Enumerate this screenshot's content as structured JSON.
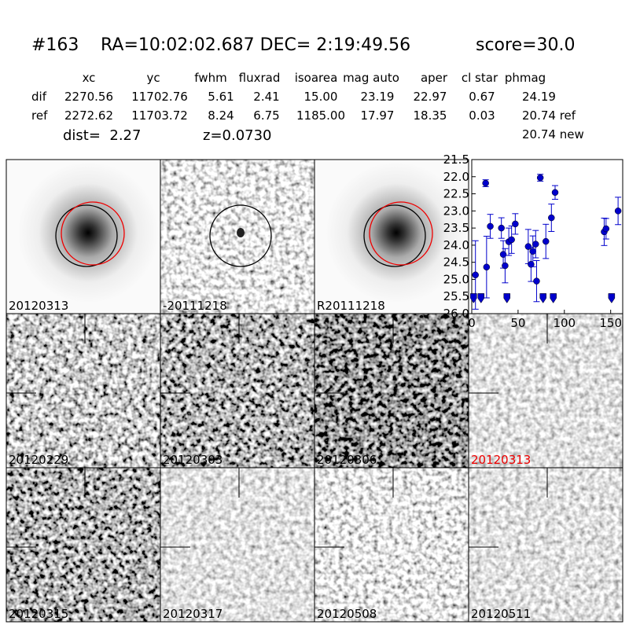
{
  "header": {
    "id": "#163",
    "coords": "RA=10:02:02.687 DEC= 2:19:49.56",
    "score": "score=30.0"
  },
  "table": {
    "columns": [
      "xc",
      "yc",
      "fwhm",
      "fluxrad",
      "isoarea",
      "mag auto",
      "aper",
      "cl star",
      "phmag"
    ],
    "rows": [
      [
        "dif",
        "2270.56",
        "11702.76",
        "5.61",
        "2.41",
        "15.00",
        "23.19",
        "22.97",
        "0.67",
        "24.19"
      ],
      [
        "ref",
        "2272.62",
        "11703.72",
        "8.24",
        "6.75",
        "1185.00",
        "17.97",
        "18.35",
        "0.03",
        "20.74 ref"
      ]
    ],
    "extra": "20.74 new"
  },
  "dist": "dist=  2.27",
  "z": "z=0.0730",
  "panels": [
    "20120313",
    "-20111218",
    "R20111218",
    "20120229",
    "20120303",
    "20120306",
    "20120313",
    "20120315",
    "20120317",
    "20120508",
    "20120511"
  ],
  "chart_data": {
    "type": "scatter",
    "xlim": [
      0,
      163
    ],
    "xticks": [
      0,
      50,
      100,
      150
    ],
    "ylim": [
      21.5,
      26.0
    ],
    "yticks": [
      21.5,
      {
        "value": 22.0,
        "label": "22.0"
      },
      22.5,
      {
        "value": 23.0,
        "label": "23.0"
      },
      23.5,
      {
        "value": 24.0,
        "label": "24.0"
      },
      24.5,
      {
        "value": 25.0,
        "label": "25.0"
      },
      25.5,
      {
        "value": 26.0,
        "label": "26.0"
      }
    ],
    "y_inverted": true,
    "points": {
      "color": "#0000cc",
      "x": [
        4,
        15,
        16,
        20,
        32,
        34,
        36,
        40,
        43,
        47,
        61,
        64,
        66,
        69,
        70,
        74,
        80,
        86,
        90,
        143,
        145,
        158
      ],
      "values": [
        24.87,
        22.19,
        24.64,
        23.45,
        23.5,
        24.27,
        24.6,
        23.9,
        23.84,
        23.38,
        24.04,
        24.56,
        24.18,
        23.97,
        25.05,
        22.03,
        23.89,
        23.2,
        22.46,
        23.61,
        23.52,
        23.0
      ],
      "errors": [
        1.0,
        0.1,
        0.9,
        0.35,
        0.3,
        0.4,
        0.5,
        0.4,
        0.4,
        0.3,
        0.5,
        0.5,
        0.45,
        0.4,
        0.6,
        0.1,
        0.5,
        0.4,
        0.2,
        0.4,
        0.3,
        0.4
      ]
    },
    "upper_limits": {
      "color": "#0000cc",
      "x": [
        2,
        10,
        38,
        77,
        88,
        151
      ],
      "values": [
        25.55,
        25.55,
        25.55,
        25.55,
        25.55,
        25.55
      ]
    }
  }
}
